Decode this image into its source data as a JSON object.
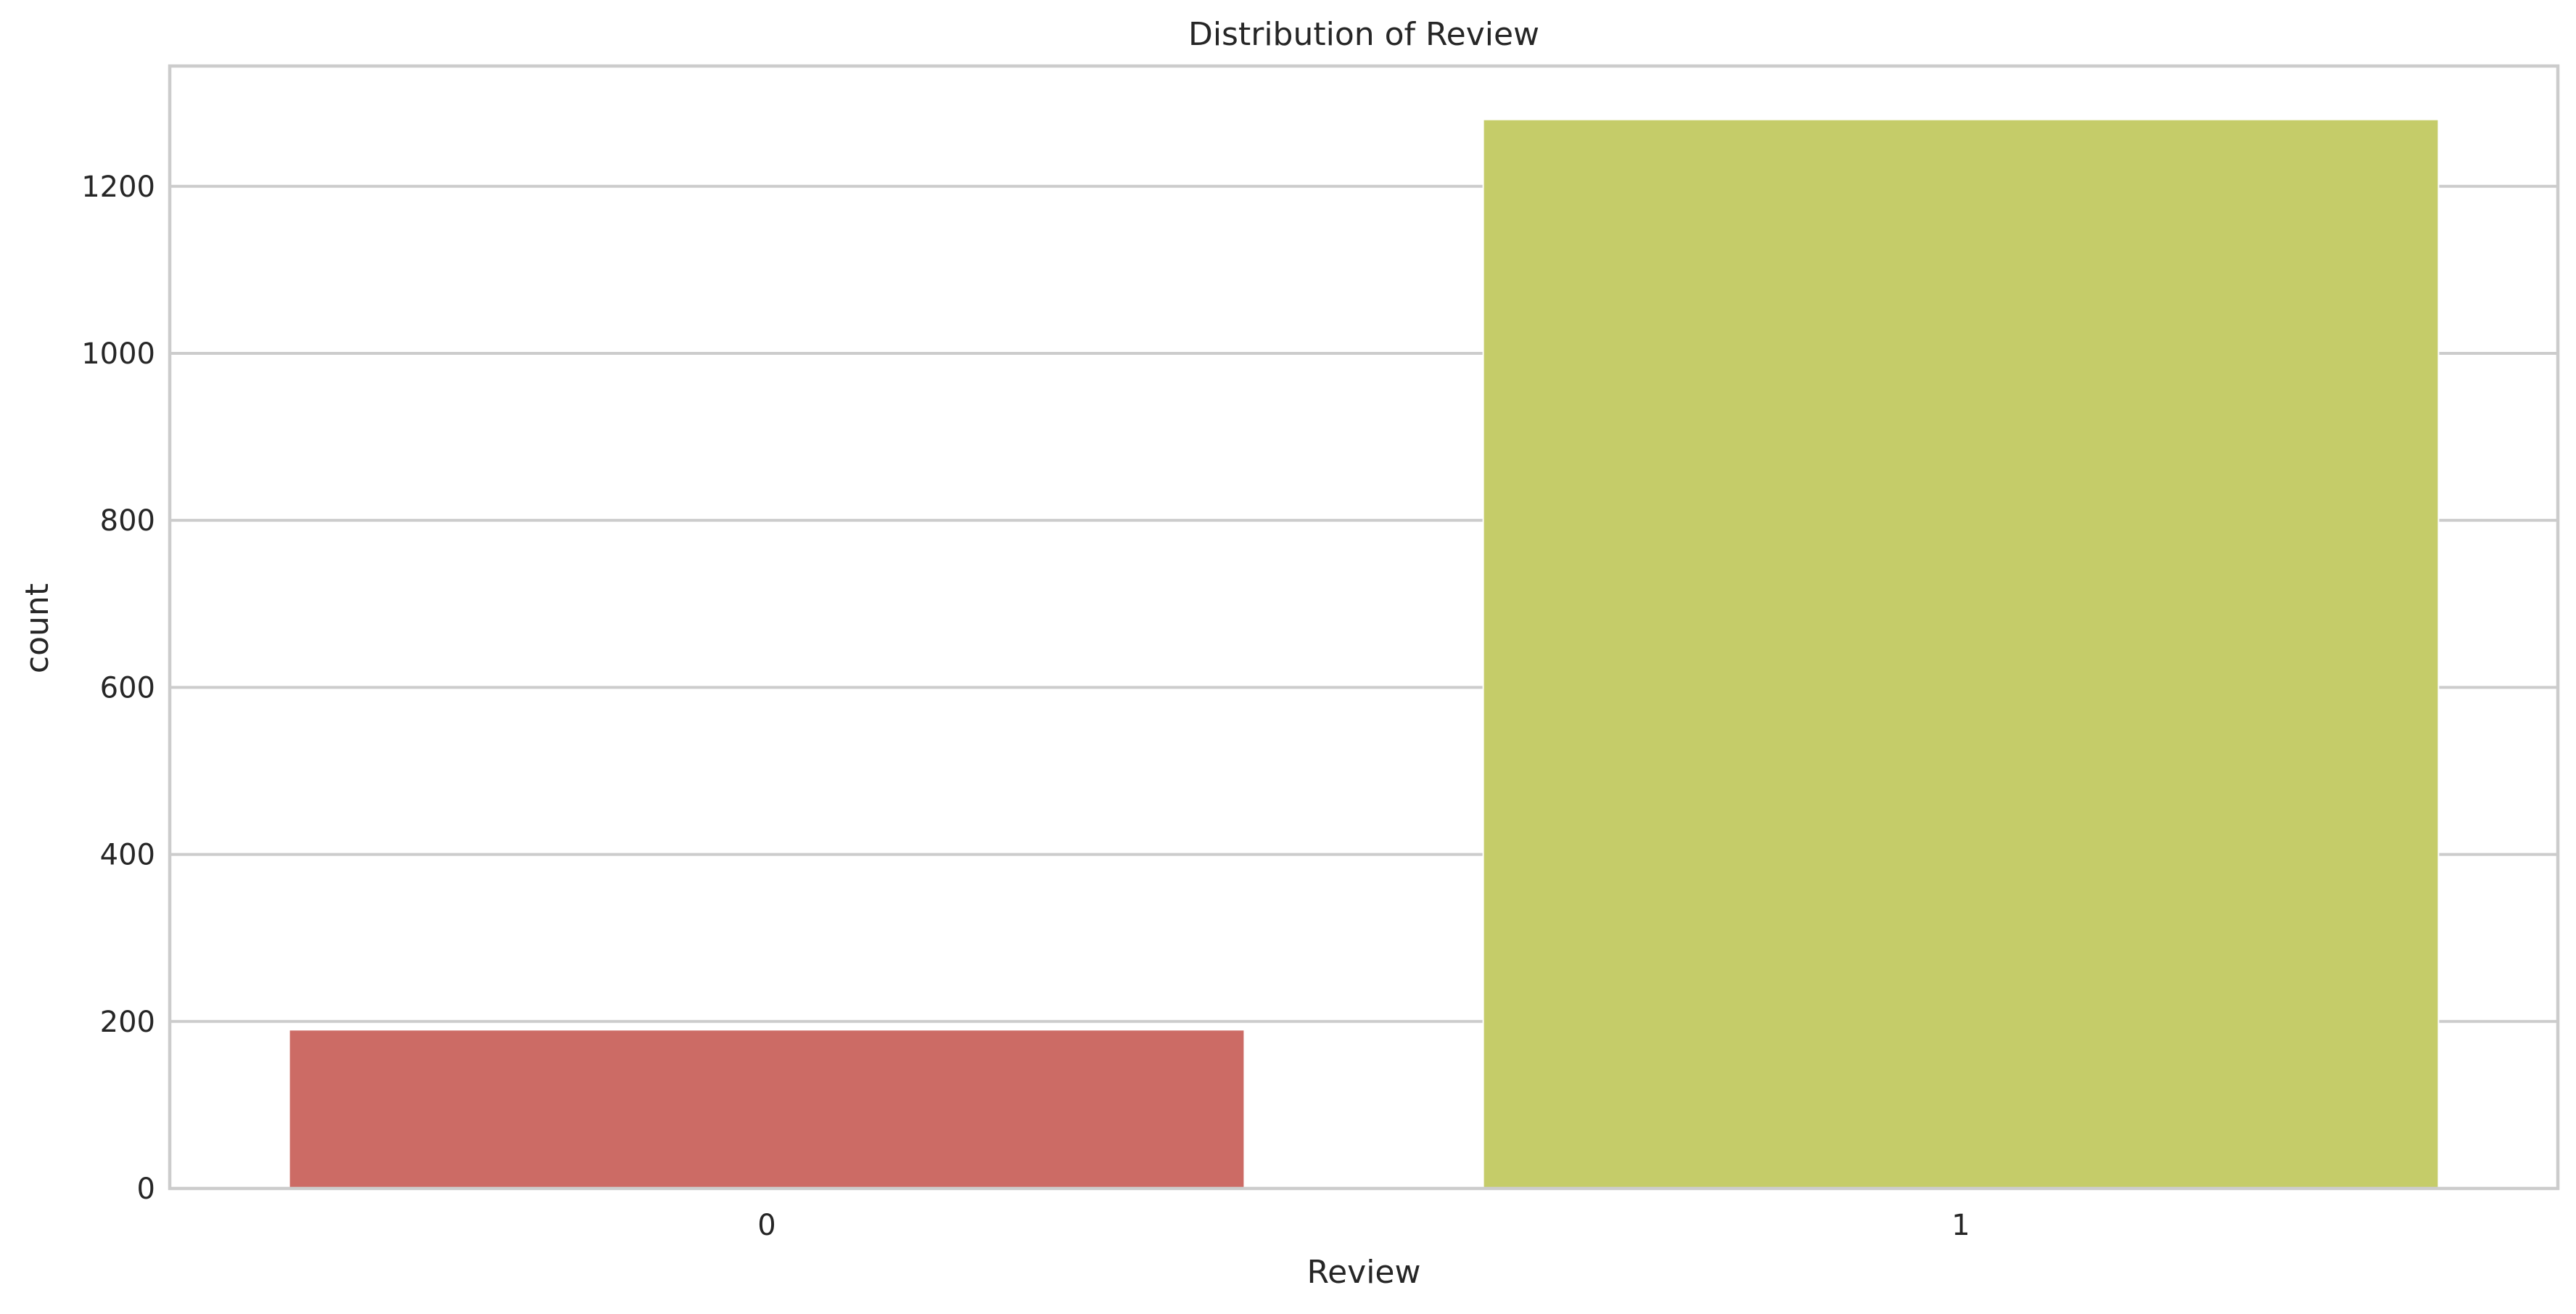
{
  "chart_data": {
    "type": "bar",
    "title": "Distribution of Review",
    "xlabel": "Review",
    "ylabel": "count",
    "categories": [
      "0",
      "1"
    ],
    "values": [
      190,
      1280
    ],
    "ylim": [
      0,
      1344
    ],
    "yticks": [
      0,
      200,
      400,
      600,
      800,
      1000,
      1200
    ],
    "bar_colors": [
      "#cc6b65",
      "#c5cc69"
    ],
    "grid": "horizontal",
    "legend": "none"
  }
}
